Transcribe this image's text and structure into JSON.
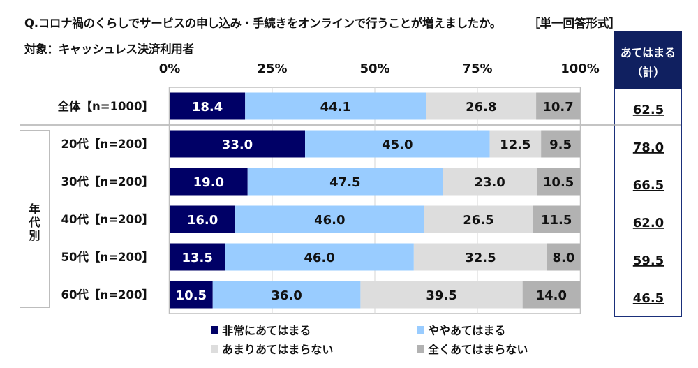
{
  "chart_data": {
    "type": "bar",
    "orientation": "horizontal",
    "stacked": "100%",
    "title": "Q.コロナ禍のくらしでサービスの申し込み・手続きをオンラインで行うことが増えましたか。",
    "question_format": "［単一回答形式］",
    "subtitle": "対象：キャッシュレス決済利用者",
    "xlabel": "",
    "ylabel": "",
    "xlim": [
      0,
      100
    ],
    "x_ticks": [
      {
        "value": 0,
        "label": "0%"
      },
      {
        "value": 25,
        "label": "25%"
      },
      {
        "value": 50,
        "label": "50%"
      },
      {
        "value": 75,
        "label": "75%"
      },
      {
        "value": 100,
        "label": "100%"
      }
    ],
    "grid": true,
    "categories": [
      "全体【n=1000】",
      "20代【n=200】",
      "30代【n=200】",
      "40代【n=200】",
      "50代【n=200】",
      "60代【n=200】"
    ],
    "group_label": [
      "年",
      "代",
      "別"
    ],
    "series": [
      {
        "name": "非常にあてはまる",
        "color": "#000066",
        "label_color": "#ffffff",
        "values": [
          18.4,
          33.0,
          19.0,
          16.0,
          13.5,
          10.5
        ]
      },
      {
        "name": "ややあてはまる",
        "color": "#99ccff",
        "label_color": "#111111",
        "values": [
          44.1,
          45.0,
          47.5,
          46.0,
          46.0,
          36.0
        ]
      },
      {
        "name": "あまりあてはまらない",
        "color": "#dddddd",
        "label_color": "#111111",
        "values": [
          26.8,
          12.5,
          23.0,
          26.5,
          32.5,
          39.5
        ]
      },
      {
        "name": "全くあてはまらない",
        "color": "#b2b2b2",
        "label_color": "#111111",
        "values": [
          10.7,
          9.5,
          10.5,
          11.5,
          8.0,
          14.0
        ]
      }
    ],
    "summary_column": {
      "header_line1": "あてはまる",
      "header_line2": "（計）",
      "values": [
        62.5,
        78.0,
        66.5,
        62.0,
        59.5,
        46.5
      ]
    },
    "legend_position": "bottom",
    "colors": {
      "header_bg": "#102060",
      "frame": "#bfbfbf"
    }
  }
}
